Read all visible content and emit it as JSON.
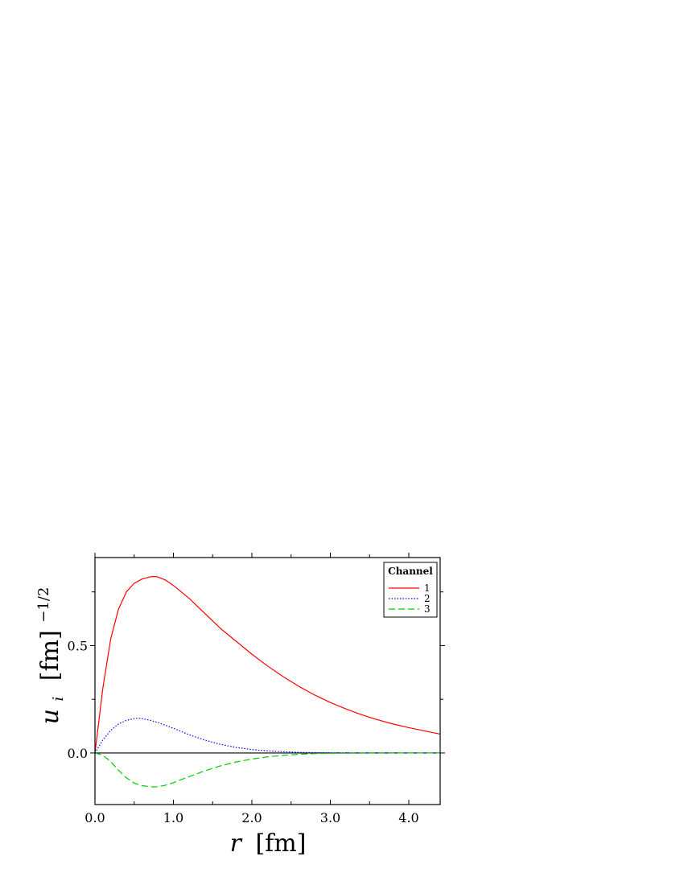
{
  "chart_data": {
    "type": "line",
    "xlabel_symbol": "r",
    "xlabel_unit": "[fm]",
    "ylabel_symbol": "u",
    "ylabel_subscript": "i",
    "ylabel_unit": "[fm]",
    "ylabel_exponent": "−1/2",
    "xlim": [
      0.0,
      4.4
    ],
    "ylim": [
      -0.24,
      0.91
    ],
    "x_ticks": [
      {
        "value": 0.0,
        "label": "0.0"
      },
      {
        "value": 1.0,
        "label": "1.0"
      },
      {
        "value": 2.0,
        "label": "2.0"
      },
      {
        "value": 3.0,
        "label": "3.0"
      },
      {
        "value": 4.0,
        "label": "4.0"
      }
    ],
    "x_minor_ticks": [
      0.5,
      1.5,
      2.5,
      3.5
    ],
    "y_ticks": [
      {
        "value": 0.0,
        "label": "0.0"
      },
      {
        "value": 0.5,
        "label": "0.5"
      }
    ],
    "y_minor_ticks": [
      -0.25,
      0.25,
      0.75
    ],
    "zero_line": true,
    "grid": false,
    "legend": {
      "title": "Channel",
      "placement": "top-right",
      "entries": [
        "1",
        "2",
        "3"
      ]
    },
    "series": [
      {
        "name": "1",
        "color": "#ff0000",
        "style": "solid",
        "x": [
          0.0,
          0.1,
          0.2,
          0.3,
          0.4,
          0.5,
          0.6,
          0.7,
          0.75,
          0.8,
          0.9,
          1.0,
          1.2,
          1.4,
          1.6,
          1.8,
          2.0,
          2.2,
          2.4,
          2.6,
          2.8,
          3.0,
          3.2,
          3.4,
          3.6,
          3.8,
          4.0,
          4.2,
          4.4
        ],
        "y": [
          0.0,
          0.3,
          0.53,
          0.67,
          0.75,
          0.79,
          0.81,
          0.82,
          0.822,
          0.82,
          0.805,
          0.78,
          0.72,
          0.65,
          0.58,
          0.52,
          0.46,
          0.405,
          0.355,
          0.31,
          0.27,
          0.235,
          0.205,
          0.178,
          0.155,
          0.135,
          0.118,
          0.103,
          0.088
        ]
      },
      {
        "name": "2",
        "color": "#0000ff",
        "style": "dotted",
        "x": [
          0.0,
          0.1,
          0.2,
          0.3,
          0.4,
          0.5,
          0.55,
          0.6,
          0.7,
          0.8,
          1.0,
          1.2,
          1.4,
          1.6,
          1.8,
          2.0,
          2.2,
          2.4,
          2.6,
          2.8,
          3.0,
          3.5,
          4.0,
          4.4
        ],
        "y": [
          0.0,
          0.06,
          0.105,
          0.135,
          0.152,
          0.16,
          0.162,
          0.16,
          0.153,
          0.142,
          0.115,
          0.085,
          0.06,
          0.04,
          0.026,
          0.016,
          0.01,
          0.006,
          0.003,
          0.0015,
          0.0008,
          0.0002,
          0.0,
          0.0
        ]
      },
      {
        "name": "3",
        "color": "#00cc00",
        "style": "dashed",
        "x": [
          0.0,
          0.1,
          0.2,
          0.3,
          0.4,
          0.5,
          0.6,
          0.7,
          0.75,
          0.8,
          0.9,
          1.0,
          1.2,
          1.4,
          1.6,
          1.8,
          2.0,
          2.2,
          2.4,
          2.6,
          2.8,
          3.0,
          3.5,
          4.0,
          4.4
        ],
        "y": [
          0.0,
          -0.01,
          -0.04,
          -0.08,
          -0.115,
          -0.14,
          -0.152,
          -0.157,
          -0.158,
          -0.157,
          -0.15,
          -0.138,
          -0.11,
          -0.083,
          -0.06,
          -0.042,
          -0.028,
          -0.018,
          -0.011,
          -0.006,
          -0.003,
          -0.0015,
          -0.0003,
          0.0,
          0.0
        ]
      }
    ]
  }
}
